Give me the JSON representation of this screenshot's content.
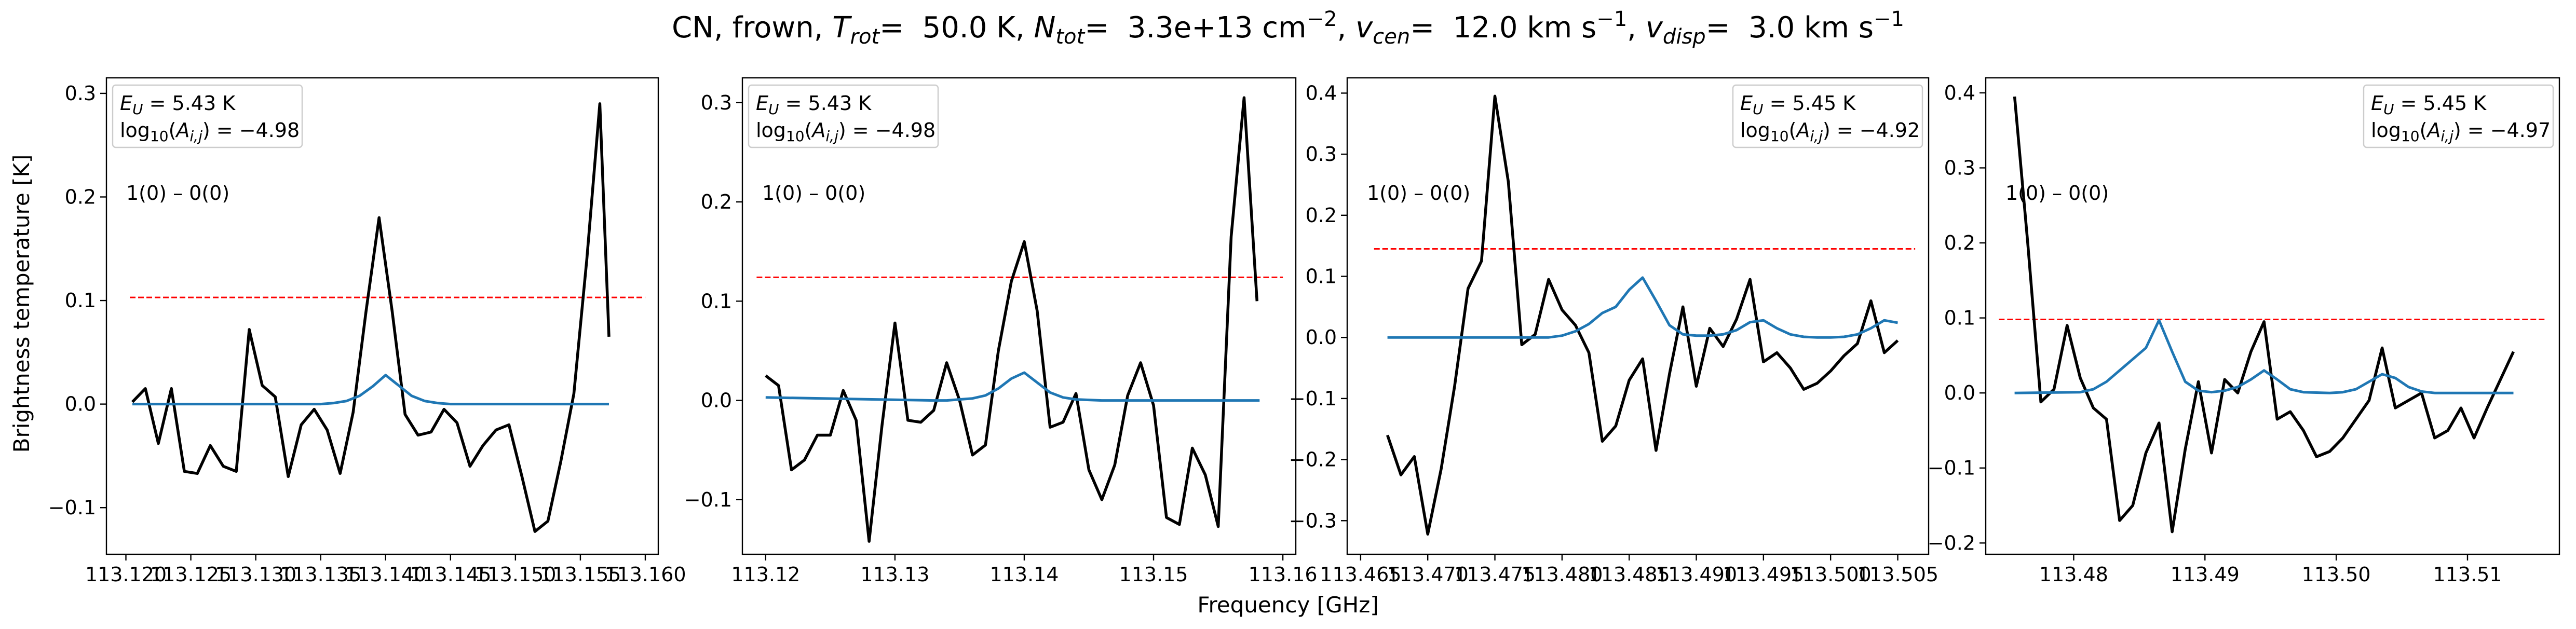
{
  "figure": {
    "title": "CN, frown, T_rot = 50.0 K, N_tot = 3.3e+13 cm^-2, v_cen = 12.0 km s^-1, v_disp = 3.0 km s^-1",
    "xlabel": "Frequency [GHz]",
    "ylabel": "Brightness temperature [K]"
  },
  "colors": {
    "observed": "#000000",
    "model": "#1f77b4",
    "threshold": "#ff0000",
    "legend_border": "#cccccc"
  },
  "chart_data": [
    {
      "type": "line",
      "transition": "1(0) – 0(0)",
      "eu_text": "E_U = 5.43 K",
      "logA_text": "log10(A_i,j) = −4.98",
      "info_box_position": "top-left",
      "xlim": [
        113.1185,
        113.161
      ],
      "ylim": [
        -0.145,
        0.315
      ],
      "xticks": [
        113.12,
        113.125,
        113.13,
        113.135,
        113.14,
        113.145,
        113.15,
        113.155,
        113.16
      ],
      "xtick_labels": [
        "113.120",
        "113.125",
        "113.130",
        "113.135",
        "113.140",
        "113.145",
        "113.150",
        "113.155",
        "113.160"
      ],
      "yticks": [
        -0.1,
        0.0,
        0.1,
        0.2,
        0.3
      ],
      "ytick_labels": [
        "−0.1",
        "0.0",
        "0.1",
        "0.2",
        "0.3"
      ],
      "threshold": 0.103,
      "threshold_x": [
        113.1203,
        113.16
      ],
      "series": [
        {
          "role": "observed",
          "x": [
            113.1205,
            113.1215,
            113.1225,
            113.1235,
            113.1245,
            113.1255,
            113.1265,
            113.1275,
            113.1285,
            113.1295,
            113.1305,
            113.1315,
            113.1325,
            113.1335,
            113.1345,
            113.1355,
            113.1365,
            113.1375,
            113.1385,
            113.1395,
            113.1405,
            113.1415,
            113.1425,
            113.1435,
            113.1445,
            113.1455,
            113.1465,
            113.1475,
            113.1485,
            113.1495,
            113.1505,
            113.1515,
            113.1525,
            113.1535,
            113.1545,
            113.1555,
            113.1565,
            113.1572
          ],
          "y": [
            0.002,
            0.015,
            -0.038,
            0.015,
            -0.065,
            -0.067,
            -0.04,
            -0.06,
            -0.065,
            0.072,
            0.018,
            0.007,
            -0.07,
            -0.02,
            -0.005,
            -0.025,
            -0.067,
            -0.008,
            0.09,
            0.18,
            0.09,
            -0.01,
            -0.03,
            -0.027,
            -0.005,
            -0.018,
            -0.06,
            -0.04,
            -0.025,
            -0.02,
            -0.07,
            -0.123,
            -0.113,
            -0.055,
            0.01,
            0.14,
            0.29,
            0.065
          ]
        },
        {
          "role": "model",
          "x": [
            113.1205,
            113.134,
            113.135,
            113.136,
            113.137,
            113.138,
            113.139,
            113.14,
            113.141,
            113.142,
            113.143,
            113.144,
            113.145,
            113.147,
            113.1572
          ],
          "y": [
            0.0,
            0.0,
            0.0,
            0.001,
            0.003,
            0.008,
            0.017,
            0.028,
            0.018,
            0.008,
            0.003,
            0.001,
            0.0,
            0.0,
            0.0
          ]
        }
      ]
    },
    {
      "type": "line",
      "transition": "1(0) – 0(0)",
      "eu_text": "E_U = 5.43 K",
      "logA_text": "log10(A_i,j) = −4.98",
      "info_box_position": "top-left",
      "xlim": [
        113.1182,
        113.161
      ],
      "ylim": [
        -0.155,
        0.325
      ],
      "xticks": [
        113.12,
        113.13,
        113.14,
        113.15,
        113.16
      ],
      "xtick_labels": [
        "113.12",
        "113.13",
        "113.14",
        "113.15",
        "113.16"
      ],
      "yticks": [
        -0.1,
        0.0,
        0.1,
        0.2,
        0.3
      ],
      "ytick_labels": [
        "−0.1",
        "0.0",
        "0.1",
        "0.2",
        "0.3"
      ],
      "threshold": 0.124,
      "threshold_x": [
        113.1193,
        113.16
      ],
      "series": [
        {
          "role": "observed",
          "x": [
            113.12,
            113.121,
            113.122,
            113.123,
            113.124,
            113.125,
            113.126,
            113.127,
            113.128,
            113.129,
            113.13,
            113.131,
            113.132,
            113.133,
            113.134,
            113.135,
            113.136,
            113.137,
            113.138,
            113.139,
            113.14,
            113.141,
            113.142,
            113.143,
            113.144,
            113.145,
            113.146,
            113.147,
            113.148,
            113.149,
            113.15,
            113.151,
            113.152,
            113.153,
            113.154,
            113.155,
            113.156,
            113.157,
            113.158
          ],
          "y": [
            0.025,
            0.015,
            -0.07,
            -0.06,
            -0.035,
            -0.035,
            0.01,
            -0.02,
            -0.142,
            -0.025,
            0.078,
            -0.02,
            -0.022,
            -0.01,
            0.038,
            0.0,
            -0.055,
            -0.045,
            0.05,
            0.12,
            0.16,
            0.09,
            -0.027,
            -0.022,
            0.007,
            -0.07,
            -0.1,
            -0.065,
            0.005,
            0.038,
            -0.005,
            -0.118,
            -0.125,
            -0.048,
            -0.075,
            -0.127,
            0.165,
            0.305,
            0.1
          ]
        },
        {
          "role": "model",
          "x": [
            113.12,
            113.133,
            113.134,
            113.135,
            113.136,
            113.137,
            113.138,
            113.139,
            113.14,
            113.141,
            113.142,
            113.143,
            113.144,
            113.146,
            113.1582
          ],
          "y": [
            0.003,
            0.0,
            0.0,
            0.001,
            0.002,
            0.005,
            0.012,
            0.022,
            0.028,
            0.018,
            0.008,
            0.003,
            0.001,
            0.0,
            0.0
          ]
        }
      ]
    },
    {
      "type": "line",
      "transition": "1(0) – 0(0)",
      "eu_text": "E_U = 5.45 K",
      "logA_text": "log10(A_i,j) = −4.92",
      "info_box_position": "top-right",
      "xlim": [
        113.464,
        113.5073
      ],
      "ylim": [
        -0.355,
        0.425
      ],
      "xticks": [
        113.465,
        113.47,
        113.475,
        113.48,
        113.485,
        113.49,
        113.495,
        113.5,
        113.505
      ],
      "xtick_labels": [
        "113.465",
        "113.470",
        "113.475",
        "113.480",
        "113.485",
        "113.490",
        "113.495",
        "113.500",
        "113.505"
      ],
      "yticks": [
        -0.3,
        -0.2,
        -0.1,
        0.0,
        0.1,
        0.2,
        0.3,
        0.4
      ],
      "ytick_labels": [
        "−0.3",
        "−0.2",
        "−0.1",
        "0.0",
        "0.1",
        "0.2",
        "0.3",
        "0.4"
      ],
      "threshold": 0.145,
      "threshold_x": [
        113.466,
        113.5063
      ],
      "series": [
        {
          "role": "observed",
          "x": [
            113.467,
            113.468,
            113.469,
            113.47,
            113.471,
            113.472,
            113.473,
            113.474,
            113.475,
            113.476,
            113.477,
            113.478,
            113.479,
            113.48,
            113.481,
            113.482,
            113.483,
            113.484,
            113.485,
            113.486,
            113.487,
            113.488,
            113.489,
            113.49,
            113.491,
            113.492,
            113.493,
            113.494,
            113.495,
            113.496,
            113.497,
            113.498,
            113.499,
            113.5,
            113.501,
            113.502,
            113.503,
            113.504,
            113.505
          ],
          "y": [
            -0.16,
            -0.225,
            -0.195,
            -0.322,
            -0.215,
            -0.08,
            0.08,
            0.125,
            0.395,
            0.255,
            -0.012,
            0.005,
            0.095,
            0.045,
            0.02,
            -0.025,
            -0.17,
            -0.145,
            -0.07,
            -0.035,
            -0.185,
            -0.06,
            0.05,
            -0.08,
            0.015,
            -0.015,
            0.03,
            0.095,
            -0.04,
            -0.025,
            -0.05,
            -0.085,
            -0.075,
            -0.055,
            -0.03,
            -0.01,
            0.06,
            -0.025,
            -0.005
          ]
        },
        {
          "role": "model",
          "x": [
            113.467,
            113.479,
            113.48,
            113.481,
            113.482,
            113.483,
            113.484,
            113.485,
            113.486,
            113.487,
            113.488,
            113.489,
            113.49,
            113.491,
            113.492,
            113.493,
            113.494,
            113.495,
            113.496,
            113.497,
            113.498,
            113.499,
            113.5,
            113.501,
            113.502,
            113.503,
            113.504,
            113.505
          ],
          "y": [
            0.0,
            0.0,
            0.003,
            0.01,
            0.022,
            0.04,
            0.05,
            0.078,
            0.098,
            0.06,
            0.02,
            0.005,
            0.003,
            0.003,
            0.005,
            0.012,
            0.025,
            0.028,
            0.015,
            0.005,
            0.001,
            0.0,
            0.0,
            0.001,
            0.005,
            0.015,
            0.028,
            0.024
          ]
        }
      ]
    },
    {
      "type": "line",
      "transition": "1(0) – 0(0)",
      "eu_text": "E_U = 5.45 K",
      "logA_text": "log10(A_i,j) = −4.97",
      "info_box_position": "top-right",
      "xlim": [
        113.4733,
        113.517
      ],
      "ylim": [
        -0.215,
        0.42
      ],
      "xticks": [
        113.48,
        113.49,
        113.5,
        113.51
      ],
      "xtick_labels": [
        "113.48",
        "113.49",
        "113.50",
        "113.51"
      ],
      "yticks": [
        -0.2,
        -0.1,
        0.0,
        0.1,
        0.2,
        0.3,
        0.4
      ],
      "ytick_labels": [
        "−0.2",
        "−0.1",
        "0.0",
        "0.1",
        "0.2",
        "0.3",
        "0.4"
      ],
      "threshold": 0.098,
      "threshold_x": [
        113.4743,
        113.516
      ],
      "series": [
        {
          "role": "observed",
          "x": [
            113.4755,
            113.4765,
            113.4775,
            113.4785,
            113.4795,
            113.4805,
            113.4815,
            113.4825,
            113.4835,
            113.4845,
            113.4855,
            113.4865,
            113.4875,
            113.4885,
            113.4895,
            113.4905,
            113.4915,
            113.4925,
            113.4935,
            113.4945,
            113.4955,
            113.4965,
            113.4975,
            113.4985,
            113.4995,
            113.5005,
            113.5015,
            113.5025,
            113.5035,
            113.5045,
            113.5055,
            113.5065,
            113.5075,
            113.5085,
            113.5095,
            113.5105,
            113.5115,
            113.5135
          ],
          "y": [
            0.395,
            0.2,
            -0.012,
            0.005,
            0.09,
            0.02,
            -0.02,
            -0.035,
            -0.17,
            -0.15,
            -0.08,
            -0.04,
            -0.185,
            -0.075,
            0.015,
            -0.08,
            0.018,
            0.0,
            0.055,
            0.095,
            -0.035,
            -0.025,
            -0.05,
            -0.085,
            -0.078,
            -0.06,
            -0.035,
            -0.01,
            0.06,
            -0.02,
            -0.01,
            0.0,
            -0.06,
            -0.05,
            -0.02,
            -0.06,
            -0.02,
            0.055
          ]
        },
        {
          "role": "model",
          "x": [
            113.4755,
            113.4805,
            113.4815,
            113.4825,
            113.4835,
            113.4845,
            113.4855,
            113.4865,
            113.4875,
            113.4885,
            113.4895,
            113.4905,
            113.4915,
            113.4925,
            113.4935,
            113.4945,
            113.4955,
            113.4965,
            113.4975,
            113.4995,
            113.5005,
            113.5015,
            113.5025,
            113.5035,
            113.5045,
            113.5055,
            113.5065,
            113.5075,
            113.5095,
            113.5135
          ],
          "y": [
            0.0,
            0.001,
            0.005,
            0.015,
            0.03,
            0.045,
            0.06,
            0.097,
            0.055,
            0.015,
            0.003,
            0.001,
            0.003,
            0.008,
            0.018,
            0.03,
            0.018,
            0.005,
            0.001,
            0.0,
            0.001,
            0.005,
            0.015,
            0.025,
            0.02,
            0.008,
            0.002,
            0.0,
            0.0,
            0.0
          ]
        }
      ]
    }
  ]
}
